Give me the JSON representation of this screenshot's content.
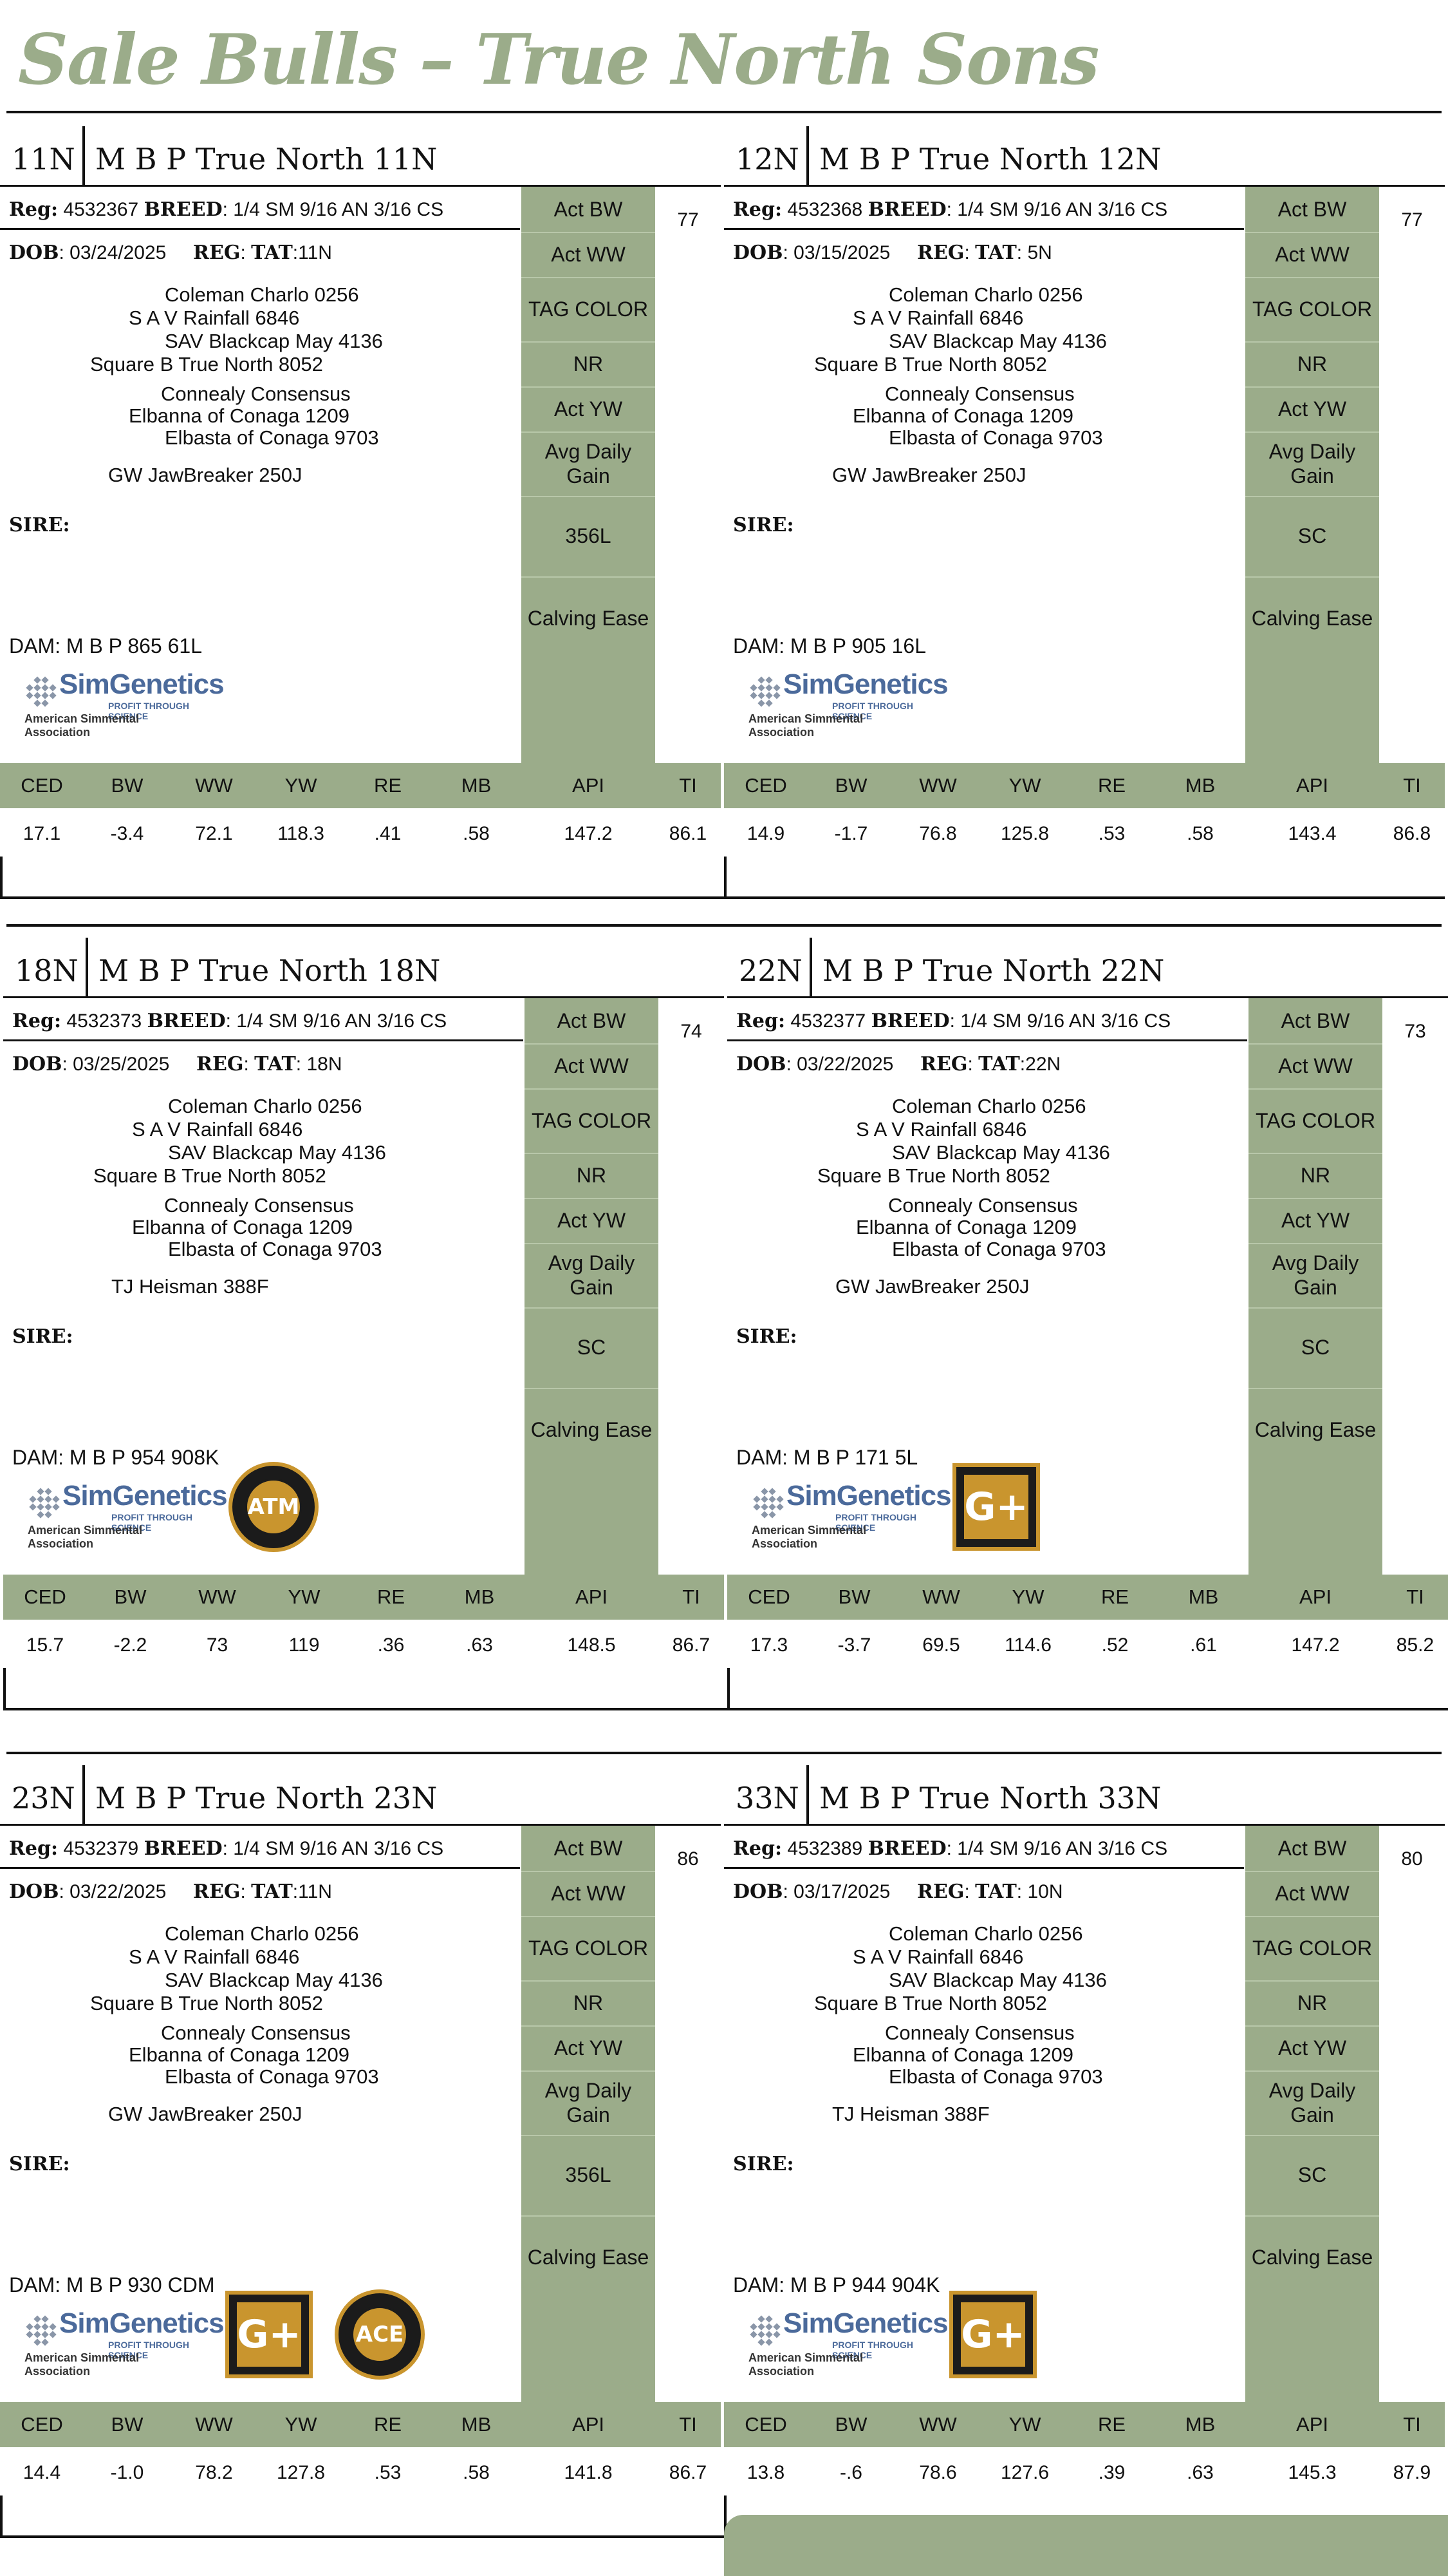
{
  "page": {
    "title": "Sale Bulls – True North Sons"
  },
  "side_labels": [
    "Act BW",
    "Act WW",
    "TAG COLOR",
    "NR",
    "Act YW",
    "Avg Daily Gain",
    "",
    "Calving Ease"
  ],
  "epd_headers": [
    "CED",
    "BW",
    "WW",
    "YW",
    "RE",
    "MB",
    "API",
    "TI"
  ],
  "logo": {
    "name": "SimGenetics",
    "tagline": "PROFIT THROUGH SCIENCE",
    "org": "American Simmental Association"
  },
  "badges": {
    "atm": "ATM",
    "gplus": "G+",
    "ace": "ACE"
  },
  "cards": [
    {
      "code": "11N",
      "name": "M B P True North 11N",
      "reg_label": "Reg:",
      "reg": "4532367",
      "breed_label": "BREED",
      "breed": ": 1/4 SM 9/16 AN 3/16 CS",
      "dob_label": "DOB",
      "dob": ": 03/24/2025",
      "reg2_label": "REG",
      "tat_label": "TAT",
      "tat": ":11N",
      "ped": [
        "Coleman Charlo 0256",
        "S A V Rainfall 6846",
        "SAV Blackcap May 4136",
        "Square B True North 8052",
        "Connealy Consensus",
        "Elbanna of Conaga 1209",
        "Elbasta of Conaga 9703",
        "GW JawBreaker 250J"
      ],
      "sire_label": "SIRE:",
      "dam": "DAM: M B P 865 61L",
      "side7": "356L",
      "act_bw": "77",
      "epd": [
        "17.1",
        "-3.4",
        "72.1",
        "118.3",
        ".41",
        ".58",
        "147.2",
        "86.1"
      ],
      "badges": []
    },
    {
      "code": "12N",
      "name": "M B P True North 12N",
      "reg_label": "Reg:",
      "reg": "4532368",
      "breed_label": "BREED",
      "breed": ": 1/4 SM 9/16 AN 3/16 CS",
      "dob_label": "DOB",
      "dob": ": 03/15/2025",
      "reg2_label": "REG",
      "tat_label": "TAT",
      "tat": ": 5N",
      "ped": [
        "Coleman Charlo 0256",
        "S A V Rainfall 6846",
        "SAV Blackcap May 4136",
        "Square B True North 8052",
        "Connealy Consensus",
        "Elbanna of Conaga 1209",
        "Elbasta of Conaga 9703",
        "GW JawBreaker 250J"
      ],
      "sire_label": "SIRE:",
      "dam": "DAM: M B P 905 16L",
      "side7": "SC",
      "act_bw": "77",
      "epd": [
        "14.9",
        "-1.7",
        "76.8",
        "125.8",
        ".53",
        ".58",
        "143.4",
        "86.8"
      ],
      "badges": []
    },
    {
      "code": "18N",
      "name": "M B P True North 18N",
      "reg_label": "Reg:",
      "reg": "4532373",
      "breed_label": "BREED",
      "breed": ": 1/4 SM 9/16 AN 3/16 CS",
      "dob_label": "DOB",
      "dob": ": 03/25/2025",
      "reg2_label": "REG",
      "tat_label": "TAT",
      "tat": ": 18N",
      "ped": [
        "Coleman Charlo 0256",
        "S A V Rainfall 6846",
        "SAV Blackcap May 4136",
        "Square B True North 8052",
        "Connealy Consensus",
        "Elbanna of Conaga 1209",
        "Elbasta of Conaga 9703",
        "TJ Heisman 388F"
      ],
      "sire_label": "SIRE:",
      "dam": "DAM: M B P 954 908K",
      "side7": "SC",
      "act_bw": "74",
      "epd": [
        "15.7",
        "-2.2",
        "73",
        "119",
        ".36",
        ".63",
        "148.5",
        "86.7"
      ],
      "badges": [
        "atm"
      ]
    },
    {
      "code": "22N",
      "name": "M B P True North 22N",
      "reg_label": "Reg:",
      "reg": "4532377",
      "breed_label": "BREED",
      "breed": ": 1/4 SM 9/16 AN 3/16 CS",
      "dob_label": "DOB",
      "dob": ": 03/22/2025",
      "reg2_label": "REG",
      "tat_label": "TAT",
      "tat": ":22N",
      "ped": [
        "Coleman Charlo 0256",
        "S A V Rainfall 6846",
        "SAV Blackcap May 4136",
        "Square B True North 8052",
        "Connealy Consensus",
        "Elbanna of Conaga 1209",
        "Elbasta of Conaga 9703",
        "GW JawBreaker 250J"
      ],
      "sire_label": "SIRE:",
      "dam": "DAM: M B P 171 5L",
      "side7": "SC",
      "act_bw": "73",
      "epd": [
        "17.3",
        "-3.7",
        "69.5",
        "114.6",
        ".52",
        ".61",
        "147.2",
        "85.2"
      ],
      "badges": [
        "gplus"
      ]
    },
    {
      "code": "23N",
      "name": "M B P True North 23N",
      "reg_label": "Reg:",
      "reg": "4532379",
      "breed_label": "BREED",
      "breed": ": 1/4 SM 9/16 AN 3/16 CS",
      "dob_label": "DOB",
      "dob": ": 03/22/2025",
      "reg2_label": "REG",
      "tat_label": "TAT",
      "tat": ":11N",
      "ped": [
        "Coleman Charlo 0256",
        "S A V Rainfall 6846",
        "SAV Blackcap May 4136",
        "Square B True North 8052",
        "Connealy Consensus",
        "Elbanna of Conaga 1209",
        "Elbasta of Conaga 9703",
        "GW JawBreaker 250J"
      ],
      "sire_label": "SIRE:",
      "dam": "DAM: M B P 930 CDM",
      "side7": "356L",
      "act_bw": "86",
      "epd": [
        "14.4",
        "-1.0",
        "78.2",
        "127.8",
        ".53",
        ".58",
        "141.8",
        "86.7"
      ],
      "badges": [
        "gplus",
        "ace"
      ]
    },
    {
      "code": "33N",
      "name": "M B P True North 33N",
      "reg_label": "Reg:",
      "reg": "4532389",
      "breed_label": "BREED",
      "breed": ": 1/4 SM 9/16 AN 3/16 CS",
      "dob_label": "DOB",
      "dob": ": 03/17/2025",
      "reg2_label": "REG",
      "tat_label": "TAT",
      "tat": ": 10N",
      "ped": [
        "Coleman Charlo 0256",
        "S A V Rainfall 6846",
        "SAV Blackcap May 4136",
        "Square B True North 8052",
        "Connealy Consensus",
        "Elbanna of Conaga 1209",
        "Elbasta of Conaga 9703",
        "TJ Heisman 388F"
      ],
      "sire_label": "SIRE:",
      "dam": "DAM: M B P 944 904K",
      "side7": "SC",
      "act_bw": "80",
      "epd": [
        "13.8",
        "-.6",
        "78.6",
        "127.6",
        ".39",
        ".63",
        "145.3",
        "87.9"
      ],
      "badges": [
        "gplus"
      ]
    }
  ]
}
